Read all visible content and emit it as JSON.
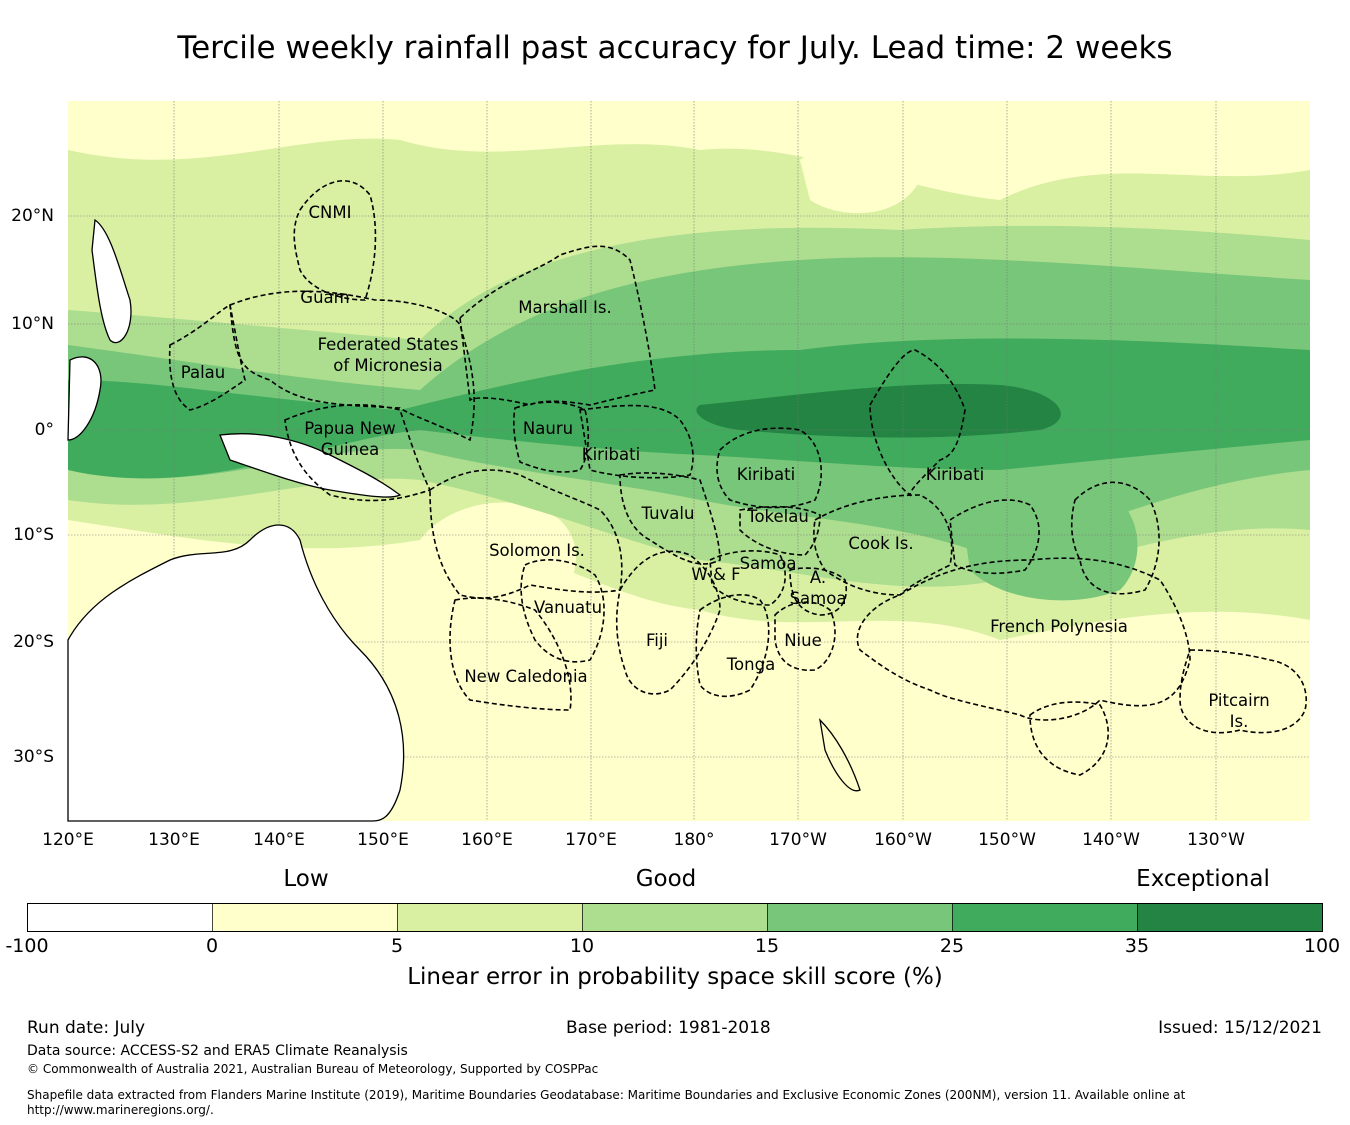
{
  "title": "Tercile weekly rainfall past accuracy for July. Lead time: 2 weeks",
  "map": {
    "lon_ticks": [
      "120°E",
      "130°E",
      "140°E",
      "150°E",
      "160°E",
      "170°E",
      "180°",
      "170°W",
      "160°W",
      "150°W",
      "140°W",
      "130°W"
    ],
    "lat_ticks": [
      "20°N",
      "10°N",
      "0°",
      "10°S",
      "20°S",
      "30°S"
    ],
    "regions": [
      {
        "name": "CNMI",
        "lines": [
          "CNMI"
        ]
      },
      {
        "name": "Guam",
        "lines": [
          "Guam"
        ]
      },
      {
        "name": "Marshall Is.",
        "lines": [
          "Marshall Is."
        ]
      },
      {
        "name": "Federated States of Micronesia",
        "lines": [
          "Federated States",
          "of Micronesia"
        ]
      },
      {
        "name": "Palau",
        "lines": [
          "Palau"
        ]
      },
      {
        "name": "Papua New Guinea",
        "lines": [
          "Papua New",
          "Guinea"
        ]
      },
      {
        "name": "Nauru",
        "lines": [
          "Nauru"
        ]
      },
      {
        "name": "Kiribati (Gilbert)",
        "lines": [
          "Kiribati"
        ]
      },
      {
        "name": "Kiribati (Phoenix)",
        "lines": [
          "Kiribati"
        ]
      },
      {
        "name": "Kiribati (Line)",
        "lines": [
          "Kiribati"
        ]
      },
      {
        "name": "Tuvalu",
        "lines": [
          "Tuvalu"
        ]
      },
      {
        "name": "Tokelau",
        "lines": [
          "Tokelau"
        ]
      },
      {
        "name": "Solomon Is.",
        "lines": [
          "Solomon Is."
        ]
      },
      {
        "name": "Samoa",
        "lines": [
          "Samoa"
        ]
      },
      {
        "name": "W & F",
        "lines": [
          "W & F"
        ]
      },
      {
        "name": "A. Samoa",
        "lines": [
          "A.",
          "Samoa"
        ]
      },
      {
        "name": "Cook Is.",
        "lines": [
          "Cook Is."
        ]
      },
      {
        "name": "Vanuatu",
        "lines": [
          "Vanuatu"
        ]
      },
      {
        "name": "Fiji",
        "lines": [
          "Fiji"
        ]
      },
      {
        "name": "Niue",
        "lines": [
          "Niue"
        ]
      },
      {
        "name": "Tonga",
        "lines": [
          "Tonga"
        ]
      },
      {
        "name": "French Polynesia",
        "lines": [
          "French Polynesia"
        ]
      },
      {
        "name": "New Caledonia",
        "lines": [
          "New Caledonia"
        ]
      },
      {
        "name": "Pitcairn Is.",
        "lines": [
          "Pitcairn",
          "Is."
        ]
      }
    ]
  },
  "legend": {
    "category_low": "Low",
    "category_good": "Good",
    "category_exceptional": "Exceptional",
    "bins": [
      {
        "from": "-100",
        "to": "0",
        "color": "#ffffff"
      },
      {
        "from": "0",
        "to": "5",
        "color": "#ffffcc"
      },
      {
        "from": "5",
        "to": "10",
        "color": "#d9f0a3"
      },
      {
        "from": "10",
        "to": "15",
        "color": "#addd8e"
      },
      {
        "from": "15",
        "to": "25",
        "color": "#78c679"
      },
      {
        "from": "25",
        "to": "35",
        "color": "#41ab5d"
      },
      {
        "from": "35",
        "to": "100",
        "color": "#238443"
      }
    ],
    "ticks": [
      "-100",
      "0",
      "5",
      "10",
      "15",
      "25",
      "35",
      "100"
    ],
    "label": "Linear error in probability space skill score (%)"
  },
  "footer": {
    "run_date": "Run date: July",
    "base_period": "Base period: 1981-2018",
    "issued": "Issued: 15/12/2021",
    "data_source": "Data source: ACCESS-S2 and ERA5 Climate Reanalysis",
    "copyright": "© Commonwealth of Australia 2021, Australian Bureau of Meteorology, Supported by COSPPac",
    "shapefile_line1": "Shapefile data extracted from Flanders Marine Institute (2019), Maritime Boundaries Geodatabase: Maritime Boundaries and Exclusive Economic Zones (200NM), version 11. Available online at",
    "shapefile_line2": "http://www.marineregions.org/."
  }
}
